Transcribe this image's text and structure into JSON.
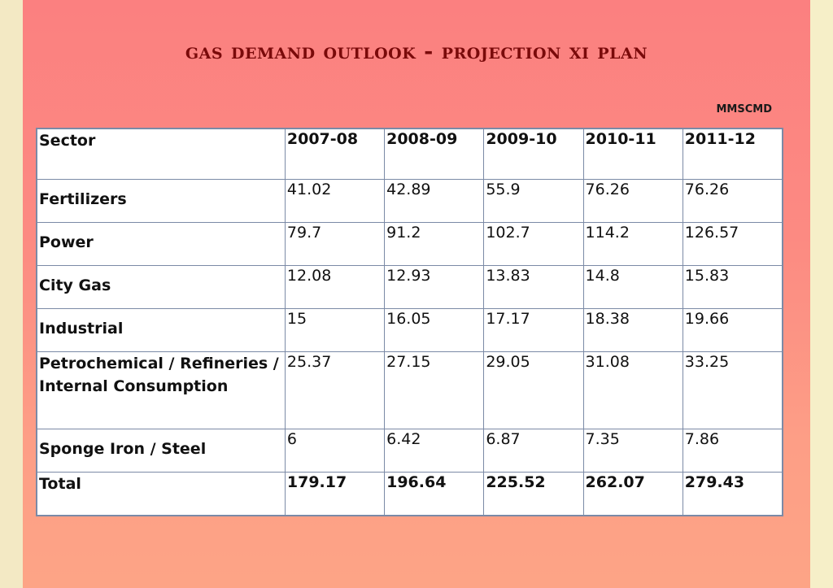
{
  "title": "Gas Demand Outlook - Projection XI Plan",
  "unit": "MMSCMD",
  "table": {
    "headers": [
      "Sector",
      "2007-08",
      "2008-09",
      "2009-10",
      "2010-11",
      "2011-12"
    ],
    "rows": [
      {
        "sector": "Fertilizers",
        "values": [
          "41.02",
          "42.89",
          "55.9",
          "76.26",
          "76.26"
        ]
      },
      {
        "sector": "Power",
        "values": [
          "79.7",
          "91.2",
          "102.7",
          "114.2",
          "126.57"
        ]
      },
      {
        "sector": "City Gas",
        "values": [
          "12.08",
          "12.93",
          "13.83",
          "14.8",
          "15.83"
        ]
      },
      {
        "sector": "Industrial",
        "values": [
          "15",
          "16.05",
          "17.17",
          "18.38",
          "19.66"
        ]
      },
      {
        "sector_line1": "Petrochemical / Refineries /",
        "sector_line2": "Internal Consumption",
        "values": [
          "25.37",
          "27.15",
          "29.05",
          "31.08",
          "33.25"
        ]
      },
      {
        "sector": "Sponge Iron / Steel",
        "values": [
          "6",
          "6.42",
          "6.87",
          "7.35",
          "7.86"
        ]
      }
    ],
    "total": {
      "sector": "Total",
      "values": [
        "179.17",
        "196.64",
        "225.52",
        "262.07",
        "279.43"
      ]
    }
  }
}
